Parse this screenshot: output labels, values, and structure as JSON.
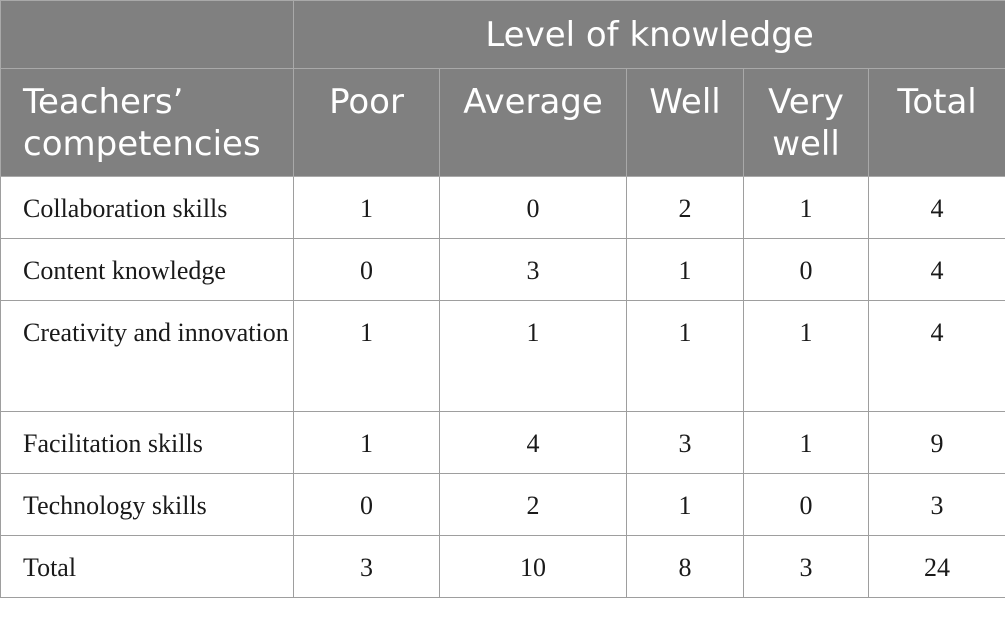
{
  "table": {
    "group_header": "Level of knowledge",
    "columns": [
      "Teachers’ competencies",
      "Poor",
      "Average",
      "Well",
      "Very well",
      "Total"
    ],
    "rows": [
      {
        "label": "Collaboration skills",
        "values": [
          "1",
          "0",
          "2",
          "1",
          "4"
        ]
      },
      {
        "label": "Content knowledge",
        "values": [
          "0",
          "3",
          "1",
          "0",
          "4"
        ]
      },
      {
        "label": "Creativity and innovation",
        "values": [
          "1",
          "1",
          "1",
          "1",
          "4"
        ]
      },
      {
        "label": "Facilitation skills",
        "values": [
          "1",
          "4",
          "3",
          "1",
          "9"
        ]
      },
      {
        "label": "Technology skills",
        "values": [
          "0",
          "2",
          "1",
          "0",
          "3"
        ]
      },
      {
        "label": "Total",
        "values": [
          "3",
          "10",
          "8",
          "3",
          "24"
        ]
      }
    ]
  }
}
